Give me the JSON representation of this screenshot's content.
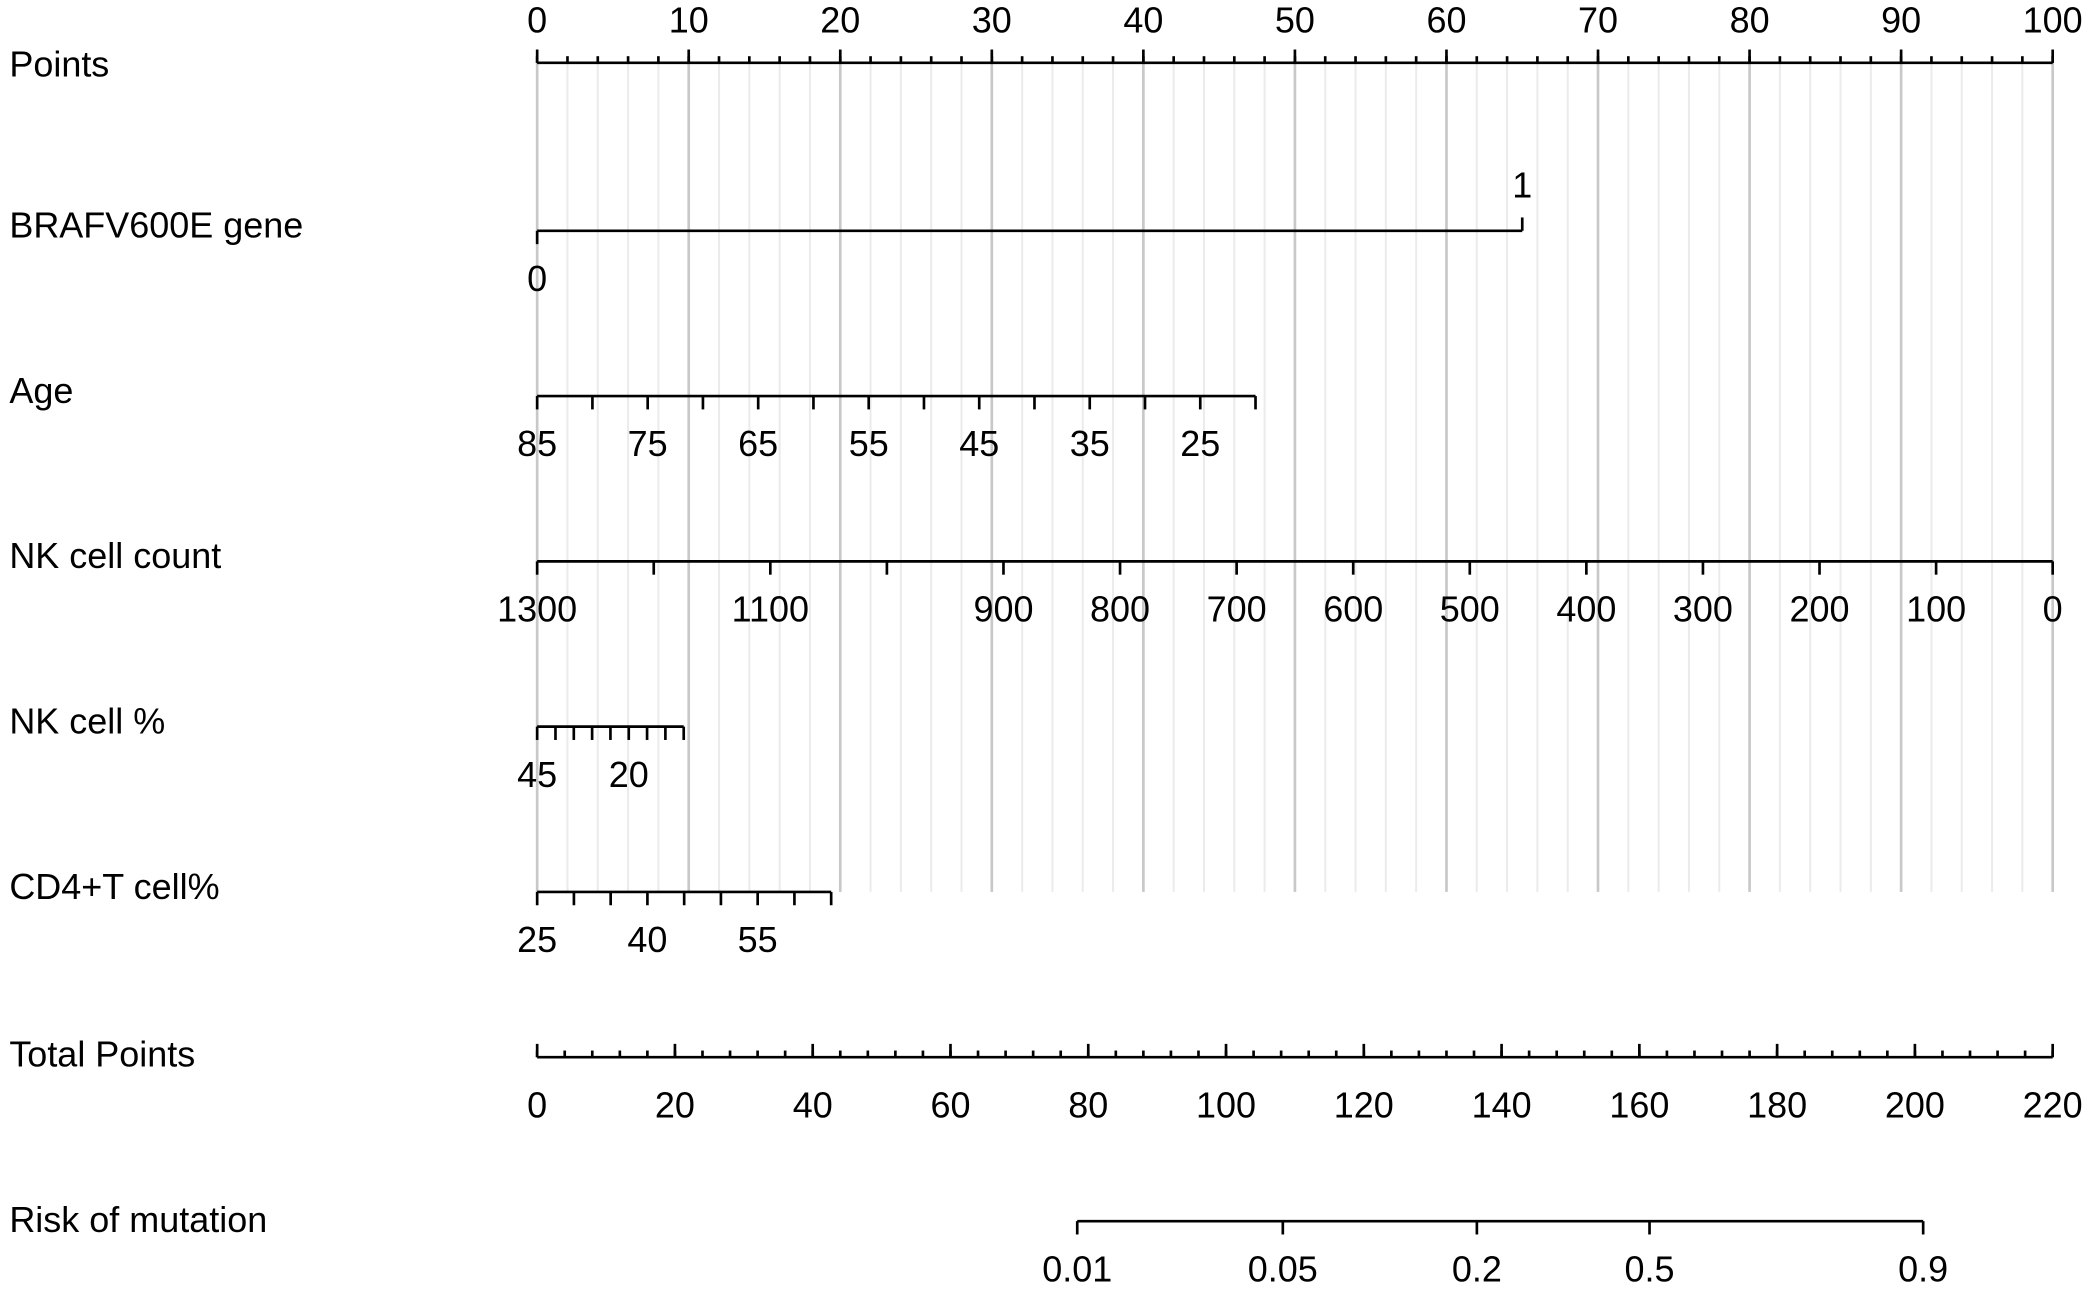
{
  "chart_data": {
    "type": "nomogram",
    "grid": true,
    "points_axis": {
      "name": "Points",
      "lim": [
        0,
        100
      ],
      "ticks": [
        0,
        10,
        20,
        30,
        40,
        50,
        60,
        70,
        80,
        90,
        100
      ],
      "minor_step": 2
    },
    "rows": [
      {
        "name": "BRAFV600E gene",
        "lim": [
          0,
          1
        ],
        "points": [
          0,
          65
        ],
        "ticks": [
          0,
          1
        ],
        "minor_ticks": []
      },
      {
        "name": "Age",
        "lim": [
          85,
          20
        ],
        "points": [
          0,
          47.4
        ],
        "ticks": [
          85,
          75,
          65,
          55,
          45,
          35,
          25
        ],
        "minor_ticks": [
          80,
          70,
          60,
          50,
          40,
          30,
          20
        ]
      },
      {
        "name": "NK cell count",
        "lim": [
          1300,
          0
        ],
        "points": [
          0,
          100
        ],
        "ticks": [
          1300,
          1100,
          900,
          800,
          700,
          600,
          500,
          400,
          300,
          200,
          100,
          0
        ],
        "minor_ticks": [
          1200,
          1000
        ]
      },
      {
        "name": "NK cell %",
        "lim": [
          45,
          5
        ],
        "points": [
          0,
          9.67
        ],
        "ticks": [
          45,
          20
        ],
        "minor_ticks": [
          40,
          35,
          30,
          25,
          15,
          10,
          5
        ]
      },
      {
        "name": "CD4+T cell%",
        "lim": [
          25,
          65
        ],
        "points": [
          0,
          19.4
        ],
        "ticks": [
          25,
          40,
          55
        ],
        "minor_ticks": [
          30,
          35,
          45,
          50,
          60,
          65
        ]
      }
    ],
    "total_axis": {
      "name": "Total Points",
      "lim": [
        0,
        220
      ],
      "ticks": [
        0,
        20,
        40,
        60,
        80,
        100,
        120,
        140,
        160,
        180,
        200,
        220
      ],
      "minor_step": 4
    },
    "risk": {
      "name": "Risk of mutation",
      "scale": "logit",
      "lim": [
        0.01,
        0.9
      ],
      "points": [
        78.4,
        201.2
      ],
      "ticks": [
        0.01,
        0.05,
        0.2,
        0.5,
        0.9
      ]
    }
  }
}
